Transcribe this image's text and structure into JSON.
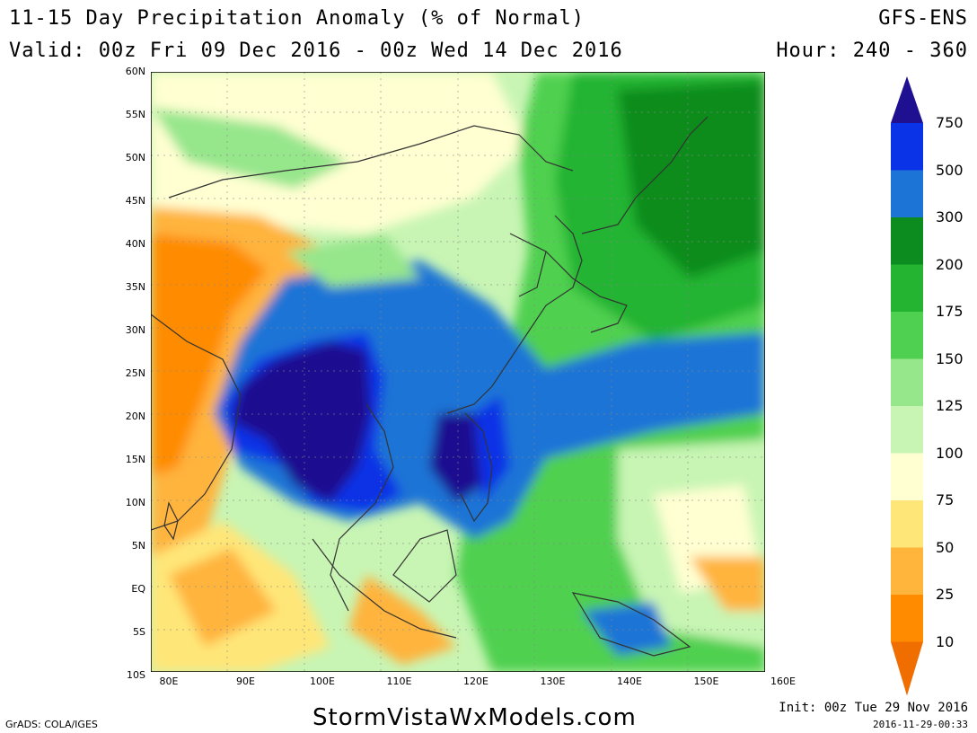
{
  "header": {
    "title": "11-15 Day Precipitation Anomaly (% of Normal)",
    "valid": "Valid: 00z Fri 09 Dec 2016 - 00z Wed 14 Dec 2016",
    "model": "GFS-ENS",
    "hour": "Hour: 240 - 360"
  },
  "map": {
    "lat_labels": [
      "60N",
      "55N",
      "50N",
      "45N",
      "40N",
      "35N",
      "30N",
      "25N",
      "20N",
      "15N",
      "10N",
      "5N",
      "EQ",
      "5S",
      "10S"
    ],
    "lon_labels": [
      "80E",
      "90E",
      "100E",
      "110E",
      "120E",
      "130E",
      "140E",
      "150E",
      "160E"
    ]
  },
  "legend": {
    "levels": [
      "750",
      "500",
      "300",
      "200",
      "175",
      "150",
      "125",
      "100",
      "75",
      "50",
      "25",
      "10"
    ],
    "colors": [
      "#1e1090",
      "#0a32e6",
      "#1c74d6",
      "#0c8c1e",
      "#24b432",
      "#50d050",
      "#96e68c",
      "#c8f5b4",
      "#ffffd2",
      "#ffe678",
      "#ffb43c",
      "#ff8c00",
      "#f06e00"
    ]
  },
  "footer": {
    "site": "StormVistaWxModels.com",
    "grads": "GrADS: COLA/IGES",
    "init": "Init: 00z Tue 29 Nov 2016",
    "stamp": "2016-11-29-00:33"
  }
}
